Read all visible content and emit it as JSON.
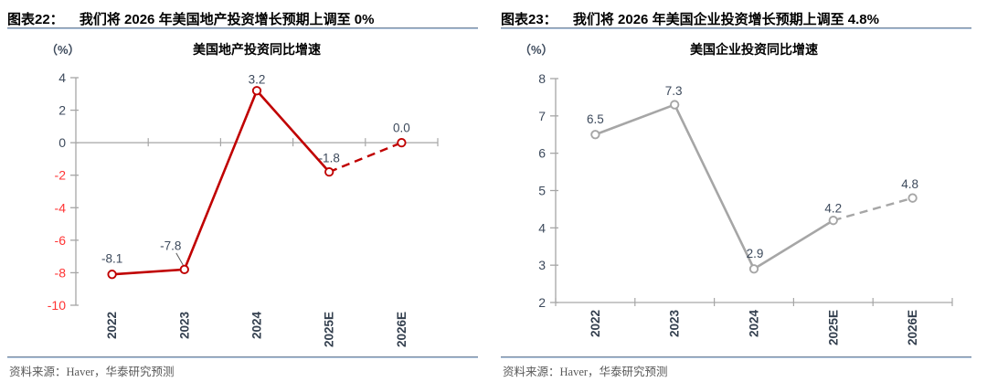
{
  "page": {
    "background": "#ffffff"
  },
  "figures": [
    {
      "header_label": "图表22：",
      "header_title": "我们将 2026 年美国地产投资增长预期上调至 0%",
      "unit_label": "（%）",
      "chart_title": "美国地产投资同比增速",
      "source_note": "资料来源：Haver，华泰研究预测",
      "chart_data": {
        "type": "line",
        "title": "美国地产投资同比增速",
        "categories": [
          "2022",
          "2023",
          "2024",
          "2025E",
          "2026E"
        ],
        "series": [
          {
            "name": "美国地产投资同比增速",
            "values": [
              -8.1,
              -7.8,
              3.2,
              -1.8,
              0.0
            ]
          }
        ],
        "value_labels": [
          "-8.1",
          "-7.8",
          "3.2",
          "-1.8",
          "0.0"
        ],
        "ylim": [
          -10,
          4
        ],
        "ytick_step": 2,
        "ylabel": "（%）",
        "x_axis_position": "zero",
        "dashed_from_index": 3,
        "forecast_categories": [
          "2025E",
          "2026E"
        ],
        "grid": false,
        "legend": "none",
        "line_color": "#c00000",
        "axis_color": "#a6a6a6",
        "tick_label_color": "#3d4a5c",
        "negative_tick_color": "#ff3333",
        "value_label_color": "#3d4a5c",
        "category_label_color": "#333f4e"
      }
    },
    {
      "header_label": "图表23：",
      "header_title": "我们将 2026 年美国企业投资增长预期上调至 4.8%",
      "unit_label": "（%）",
      "chart_title": "美国企业投资同比增速",
      "source_note": "资料来源：Haver，华泰研究预测",
      "chart_data": {
        "type": "line",
        "title": "美国企业投资同比增速",
        "categories": [
          "2022",
          "2023",
          "2024",
          "2025E",
          "2026E"
        ],
        "series": [
          {
            "name": "美国企业投资同比增速",
            "values": [
              6.5,
              7.3,
              2.9,
              4.2,
              4.8
            ]
          }
        ],
        "value_labels": [
          "6.5",
          "7.3",
          "2.9",
          "4.2",
          "4.8"
        ],
        "ylim": [
          2,
          8
        ],
        "ytick_step": 1,
        "ylabel": "（%）",
        "x_axis_position": "bottom",
        "dashed_from_index": 3,
        "forecast_categories": [
          "2025E",
          "2026E"
        ],
        "grid": false,
        "legend": "none",
        "line_color": "#a6a6a6",
        "axis_color": "#a6a6a6",
        "tick_label_color": "#3d4a5c",
        "negative_tick_color": "#ff3333",
        "value_label_color": "#3d4a5c",
        "category_label_color": "#333f4e"
      }
    }
  ]
}
